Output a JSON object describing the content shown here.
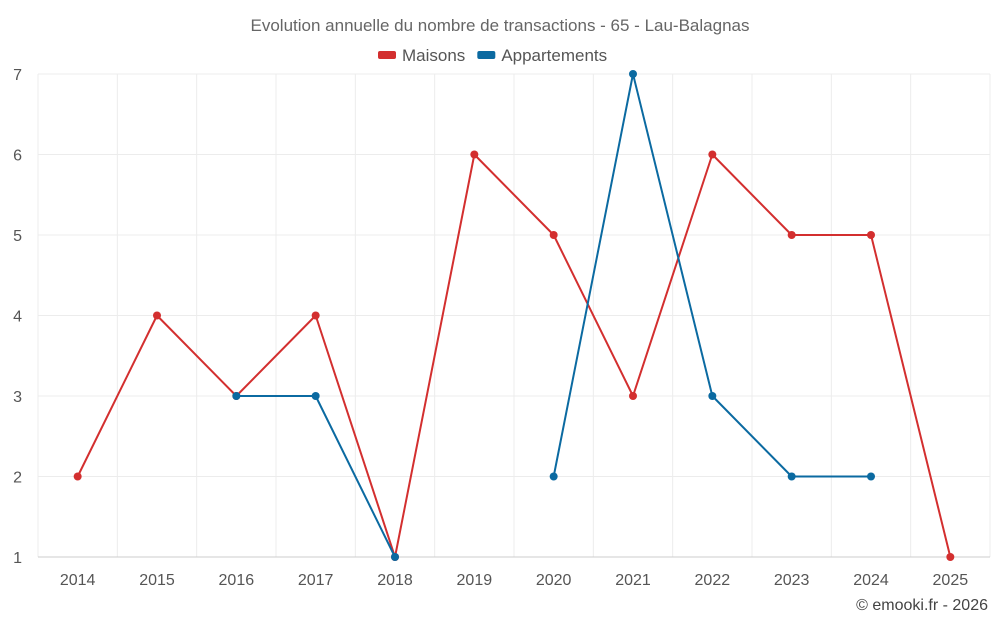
{
  "chart_data": {
    "type": "line",
    "title": "Evolution annuelle du nombre de transactions - 65 - Lau-Balagnas",
    "categories": [
      "2014",
      "2015",
      "2016",
      "2017",
      "2018",
      "2019",
      "2020",
      "2021",
      "2022",
      "2023",
      "2024",
      "2025"
    ],
    "ylim": [
      1,
      7
    ],
    "yticks": [
      1,
      2,
      3,
      4,
      5,
      6,
      7
    ],
    "grid": true,
    "legend_position": "top-center",
    "series": [
      {
        "name": "Maisons",
        "color": "#d32f2f",
        "values": [
          2,
          4,
          3,
          4,
          1,
          6,
          5,
          3,
          6,
          5,
          5,
          1
        ]
      },
      {
        "name": "Appartements",
        "color": "#0b6aa1",
        "values": [
          null,
          null,
          3,
          3,
          1,
          null,
          2,
          7,
          3,
          2,
          2,
          null
        ]
      }
    ]
  },
  "credit": "© emooki.fr - 2026"
}
